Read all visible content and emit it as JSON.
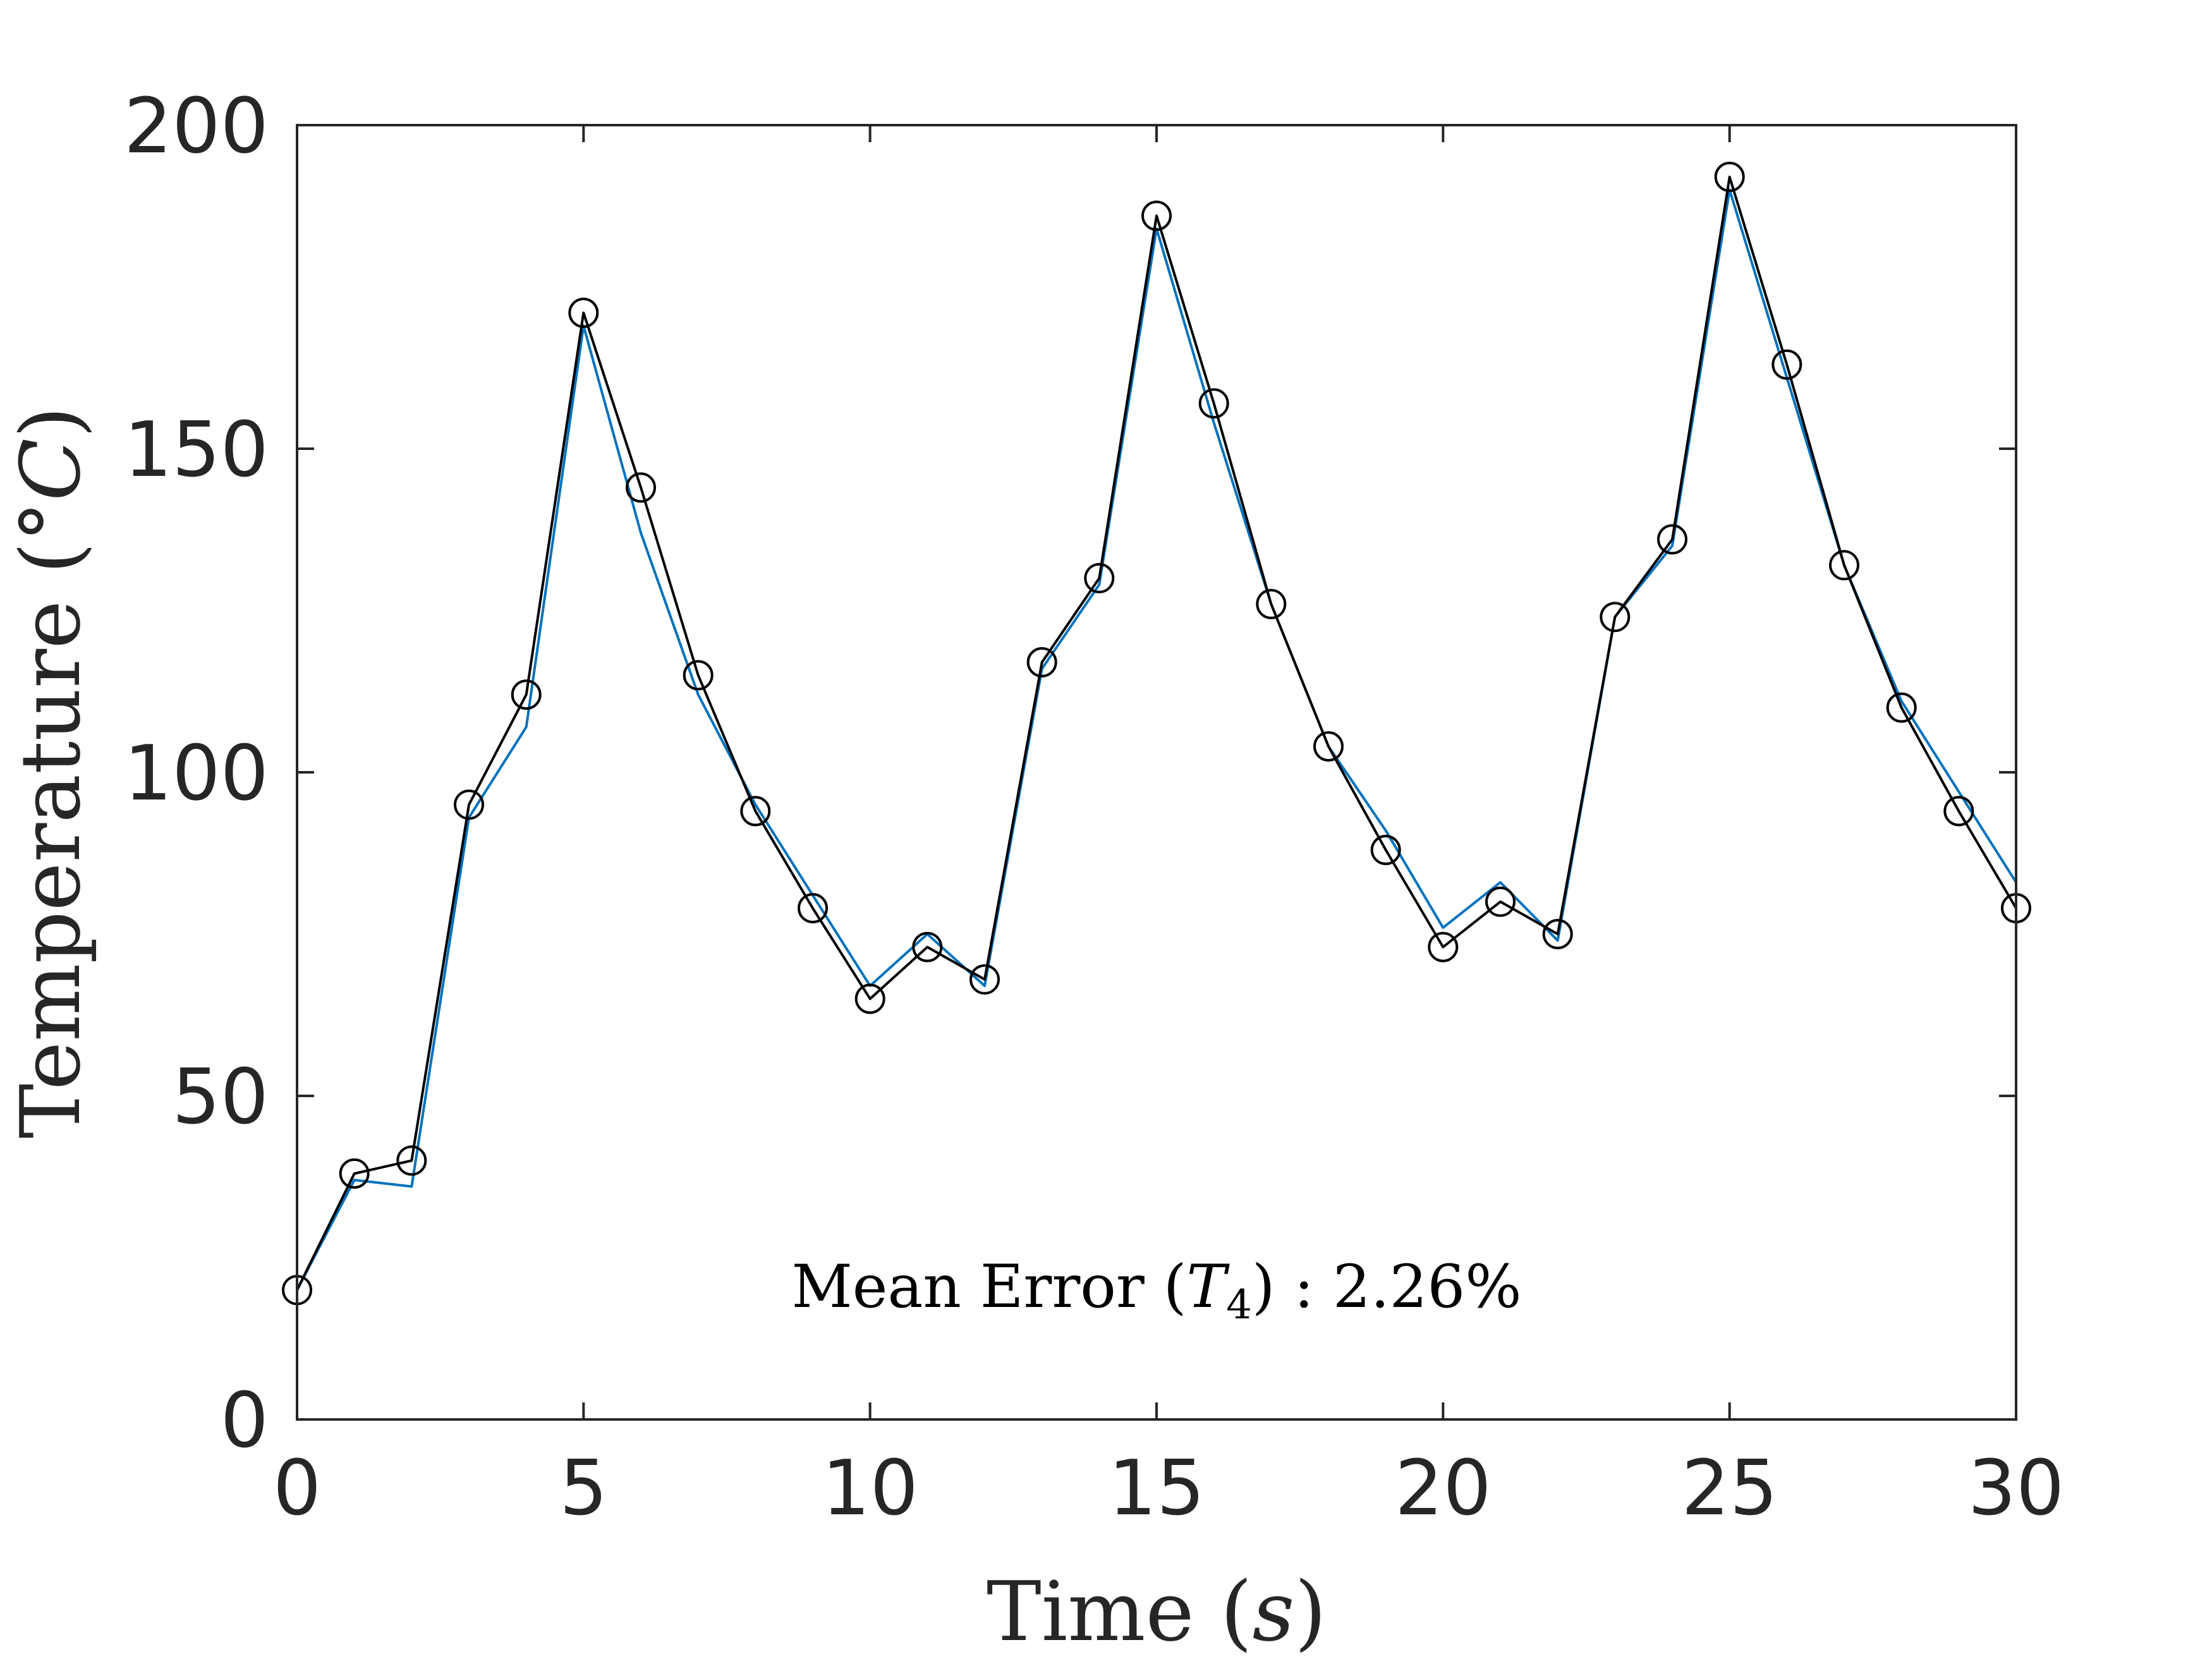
{
  "chart_data": {
    "type": "line",
    "xlabel": "Time (s)",
    "xlabel_parts": {
      "prefix": "Time (",
      "variable": "s",
      "suffix": ")"
    },
    "ylabel": "Temperature (°C)",
    "ylabel_parts": {
      "prefix": "Temperature (°",
      "variable": "C",
      "suffix": ")"
    },
    "xlim": [
      0,
      30
    ],
    "ylim": [
      0,
      200
    ],
    "xticks": [
      0,
      5,
      10,
      15,
      20,
      25,
      30
    ],
    "yticks": [
      0,
      50,
      100,
      150,
      200
    ],
    "grid": false,
    "box": true,
    "annotation": "Mean Error (T4) : 2.26%",
    "annotation_parts": {
      "prefix": "Mean Error (",
      "variable": "T",
      "subscript": "4",
      "suffix": ") : 2.26%"
    },
    "x": [
      0,
      1,
      2,
      3,
      4,
      5,
      6,
      7,
      8,
      9,
      10,
      11,
      12,
      13,
      14,
      15,
      16,
      17,
      18,
      19,
      20,
      21,
      22,
      23,
      24,
      25,
      26,
      27,
      28,
      29,
      30
    ],
    "series": [
      {
        "color": "#0072BD",
        "marker": "none",
        "values": [
          20,
          37,
          36,
          93,
          107,
          169,
          137,
          112,
          95,
          81,
          67,
          75,
          67,
          116,
          129,
          184,
          154,
          126,
          104,
          91,
          76,
          83,
          74,
          124,
          135,
          190,
          161,
          132,
          111,
          97,
          83
        ]
      },
      {
        "color": "#000000",
        "marker": "circle",
        "values": [
          20,
          38,
          40,
          95,
          112,
          171,
          144,
          115,
          94,
          79,
          65,
          73,
          68,
          117,
          130,
          186,
          157,
          126,
          104,
          88,
          73,
          80,
          75,
          124,
          136,
          192,
          163,
          132,
          110,
          94,
          79
        ]
      }
    ]
  }
}
